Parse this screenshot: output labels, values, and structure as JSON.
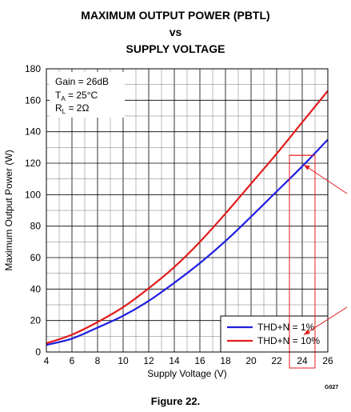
{
  "header": {
    "title_line1": "MAXIMUM OUTPUT POWER (PBTL)",
    "title_line2": "vs",
    "title_line3": "SUPPLY VOLTAGE"
  },
  "conditions": {
    "gain": "Gain = 26dB",
    "ta_main": "T",
    "ta_sub": "A",
    "ta_rest": " = 25°C",
    "rl_main": "R",
    "rl_sub": "L",
    "rl_rest": " = 2Ω"
  },
  "figure_id": "G027",
  "caption": "Figure 22.",
  "colors": {
    "series_1": "#1f1fe0",
    "series_2": "#e31b1b",
    "annotation": "#e31b1b"
  },
  "chart_data": {
    "type": "line",
    "xlabel": "Supply Voltage (V)",
    "ylabel": "Maximum Output Power (W)",
    "xlim": [
      4,
      26
    ],
    "ylim": [
      0,
      180
    ],
    "xticks": [
      4,
      6,
      8,
      10,
      12,
      14,
      16,
      18,
      20,
      22,
      24,
      26
    ],
    "yticks": [
      0,
      20,
      40,
      60,
      80,
      100,
      120,
      140,
      160,
      180
    ],
    "grid": true,
    "legend_position": "bottom-right",
    "series": [
      {
        "name": "THD+N = 1%",
        "x": [
          4,
          6,
          8,
          10,
          12,
          14,
          16,
          18,
          20,
          22,
          24,
          26
        ],
        "y": [
          4.5,
          8.5,
          15.5,
          23,
          32.5,
          44,
          56.5,
          70.5,
          86,
          102,
          118,
          135
        ]
      },
      {
        "name": "THD+N = 10%",
        "x": [
          4,
          6,
          8,
          10,
          12,
          14,
          16,
          18,
          20,
          22,
          24,
          26
        ],
        "y": [
          5.5,
          11,
          19,
          28.5,
          40.5,
          54,
          70,
          88,
          107,
          126,
          146,
          166
        ]
      }
    ],
    "annotations": {
      "highlight_x_range": [
        23,
        25
      ],
      "highlight_y_range": [
        0,
        125
      ],
      "arrows": [
        {
          "target_x": 24,
          "target_y": 120
        },
        {
          "target_x": 24,
          "target_y": 12
        }
      ]
    }
  }
}
